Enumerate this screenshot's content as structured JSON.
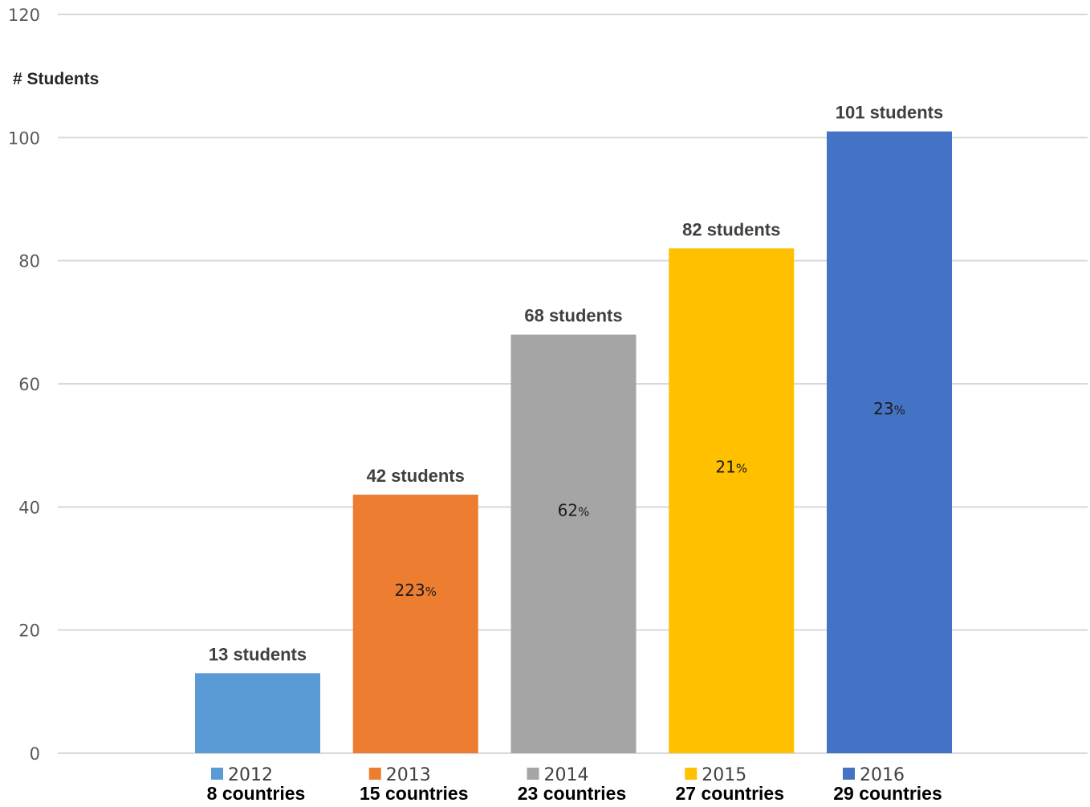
{
  "chart_data": {
    "type": "bar",
    "ylabel": "# Students",
    "ylim": [
      0,
      120
    ],
    "yticks": [
      0,
      20,
      40,
      60,
      80,
      100,
      120
    ],
    "grid": true,
    "legend_position": "bottom",
    "categories": [
      "2012",
      "2013",
      "2014",
      "2015",
      "2016"
    ],
    "values": [
      13,
      42,
      68,
      82,
      101
    ],
    "value_labels": [
      "13 students",
      "42 students",
      "68 students",
      "82 students",
      "101 students"
    ],
    "growth_labels": [
      {
        "number": "",
        "sign": ""
      },
      {
        "number": "223",
        "sign": "%"
      },
      {
        "number": "62",
        "sign": "%"
      },
      {
        "number": "21",
        "sign": "%"
      },
      {
        "number": "23",
        "sign": "%"
      }
    ],
    "countries": [
      "8 countries",
      "15 countries",
      "23 countries",
      "27 countries",
      "29 countries"
    ],
    "colors": [
      "#5b9bd5",
      "#ed7d31",
      "#a5a5a5",
      "#ffc000",
      "#4472c4"
    ]
  }
}
